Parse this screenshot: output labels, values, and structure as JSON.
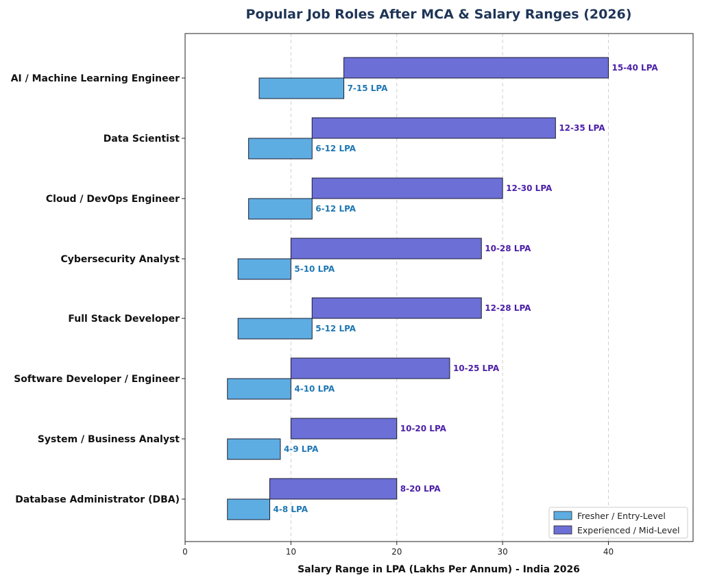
{
  "chart_data": {
    "type": "bar",
    "orientation": "horizontal-floating",
    "title": "Popular Job Roles After MCA & Salary Ranges (2026)",
    "xlabel": "Salary Range in LPA (Lakhs Per Annum) - India 2026",
    "ylabel": "",
    "xlim": [
      0,
      48
    ],
    "xticks": [
      0,
      10,
      20,
      30,
      40
    ],
    "grid": "vertical-dashed",
    "legend_position": "bottom-right",
    "colors": {
      "fresher": "#5dade2",
      "experienced": "#6c6fd6",
      "fresher_label": "#1f77b4",
      "experienced_label": "#4b1fa8"
    },
    "categories": [
      "AI / Machine Learning Engineer",
      "Data Scientist",
      "Cloud / DevOps Engineer",
      "Cybersecurity Analyst",
      "Full Stack Developer",
      "Software Developer / Engineer",
      "System / Business Analyst",
      "Database Administrator (DBA)"
    ],
    "series": [
      {
        "name": "Fresher / Entry-Level",
        "ranges": [
          [
            7,
            15
          ],
          [
            6,
            12
          ],
          [
            6,
            12
          ],
          [
            5,
            10
          ],
          [
            5,
            12
          ],
          [
            4,
            10
          ],
          [
            4,
            9
          ],
          [
            4,
            8
          ]
        ],
        "labels": [
          "7-15 LPA",
          "6-12 LPA",
          "6-12 LPA",
          "5-10 LPA",
          "5-12 LPA",
          "4-10 LPA",
          "4-9 LPA",
          "4-8 LPA"
        ]
      },
      {
        "name": "Experienced / Mid-Level",
        "ranges": [
          [
            15,
            40
          ],
          [
            12,
            35
          ],
          [
            12,
            30
          ],
          [
            10,
            28
          ],
          [
            12,
            28
          ],
          [
            10,
            25
          ],
          [
            10,
            20
          ],
          [
            8,
            20
          ]
        ],
        "labels": [
          "15-40 LPA",
          "12-35 LPA",
          "12-30 LPA",
          "10-28 LPA",
          "12-28 LPA",
          "10-25 LPA",
          "10-20 LPA",
          "8-20 LPA"
        ]
      }
    ]
  }
}
